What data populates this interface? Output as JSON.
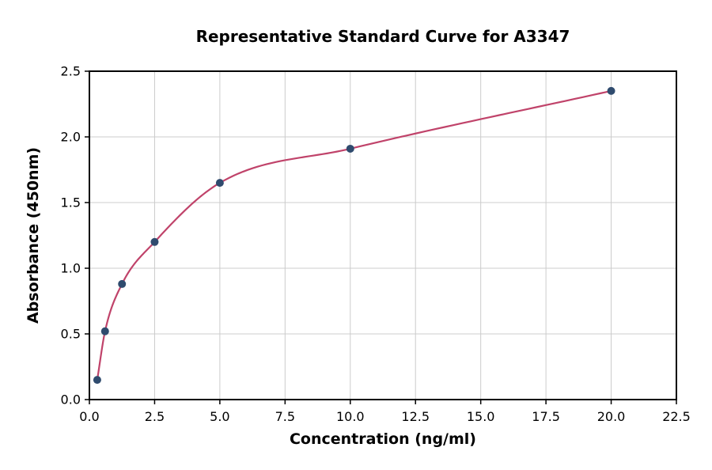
{
  "figure": {
    "background": "#ffffff"
  },
  "chart_data": {
    "type": "scatter",
    "title": "Representative Standard Curve for A3347",
    "xlabel": "Concentration (ng/ml)",
    "ylabel": "Absorbance (450nm)",
    "xlim": [
      0,
      22.5
    ],
    "ylim": [
      0,
      2.5
    ],
    "xticks": [
      0,
      2.5,
      5,
      7.5,
      10,
      12.5,
      15,
      17.5,
      20,
      22.5
    ],
    "xtick_labels": [
      "0.0",
      "2.5",
      "5.0",
      "7.5",
      "10.0",
      "12.5",
      "15.0",
      "17.5",
      "20.0",
      "22.5"
    ],
    "yticks": [
      0,
      0.5,
      1,
      1.5,
      2,
      2.5
    ],
    "ytick_labels": [
      "0.0",
      "0.5",
      "1.0",
      "1.5",
      "2.0",
      "2.5"
    ],
    "grid": true,
    "legend": "none",
    "points": {
      "name": "standards",
      "x": [
        0.3,
        0.6,
        1.25,
        2.5,
        5,
        10,
        20
      ],
      "y": [
        0.15,
        0.52,
        0.88,
        1.2,
        1.65,
        1.91,
        2.35
      ],
      "color": "#2f4b6e",
      "marker": "circle",
      "size": 5
    },
    "fit_curve": {
      "name": "standard-curve-fit",
      "type": "smooth-through-points",
      "color": "#c0436a",
      "width": 2.2
    },
    "colors": {
      "grid": "#cccccc",
      "axis": "#000000",
      "text": "#000000",
      "background": "#ffffff"
    }
  }
}
